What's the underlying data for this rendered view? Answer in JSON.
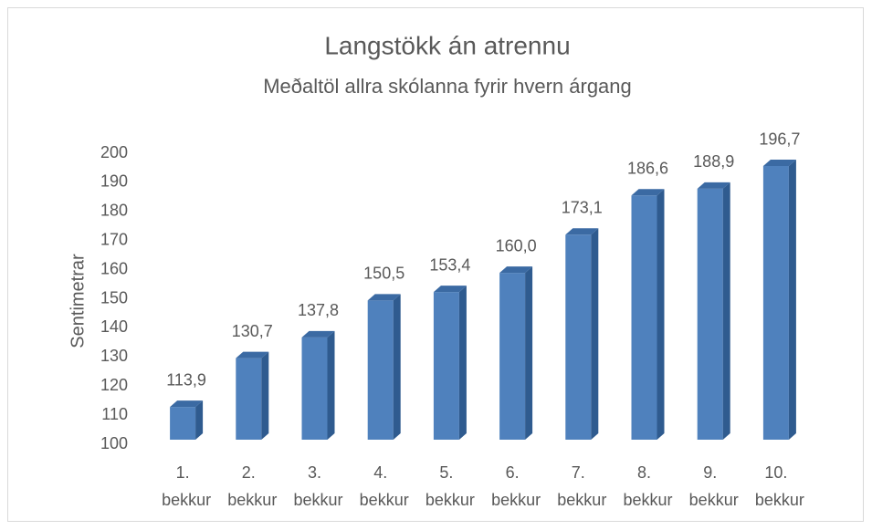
{
  "chart_data": {
    "type": "bar3d",
    "title": "Langstökk án atrennu",
    "subtitle": "Meðaltöl allra skólanna fyrir hvern árgang",
    "y_label": "Sentimetrar",
    "categories": [
      "1. bekkur",
      "2. bekkur",
      "3. bekkur",
      "4. bekkur",
      "5. bekkur",
      "6. bekkur",
      "7. bekkur",
      "8. bekkur",
      "9. bekkur",
      "10. bekkur"
    ],
    "values": [
      113.9,
      130.7,
      137.8,
      150.5,
      153.4,
      160.0,
      173.1,
      186.6,
      188.9,
      196.7
    ],
    "value_labels": [
      "113,9",
      "130,7",
      "137,8",
      "150,5",
      "153,4",
      "160,0",
      "173,1",
      "186,6",
      "188,9",
      "196,7"
    ],
    "color": "#4f81bd",
    "ylim": [
      100,
      200
    ],
    "yticks": [
      100,
      110,
      120,
      130,
      140,
      150,
      160,
      170,
      180,
      190,
      200
    ],
    "grid": false
  }
}
